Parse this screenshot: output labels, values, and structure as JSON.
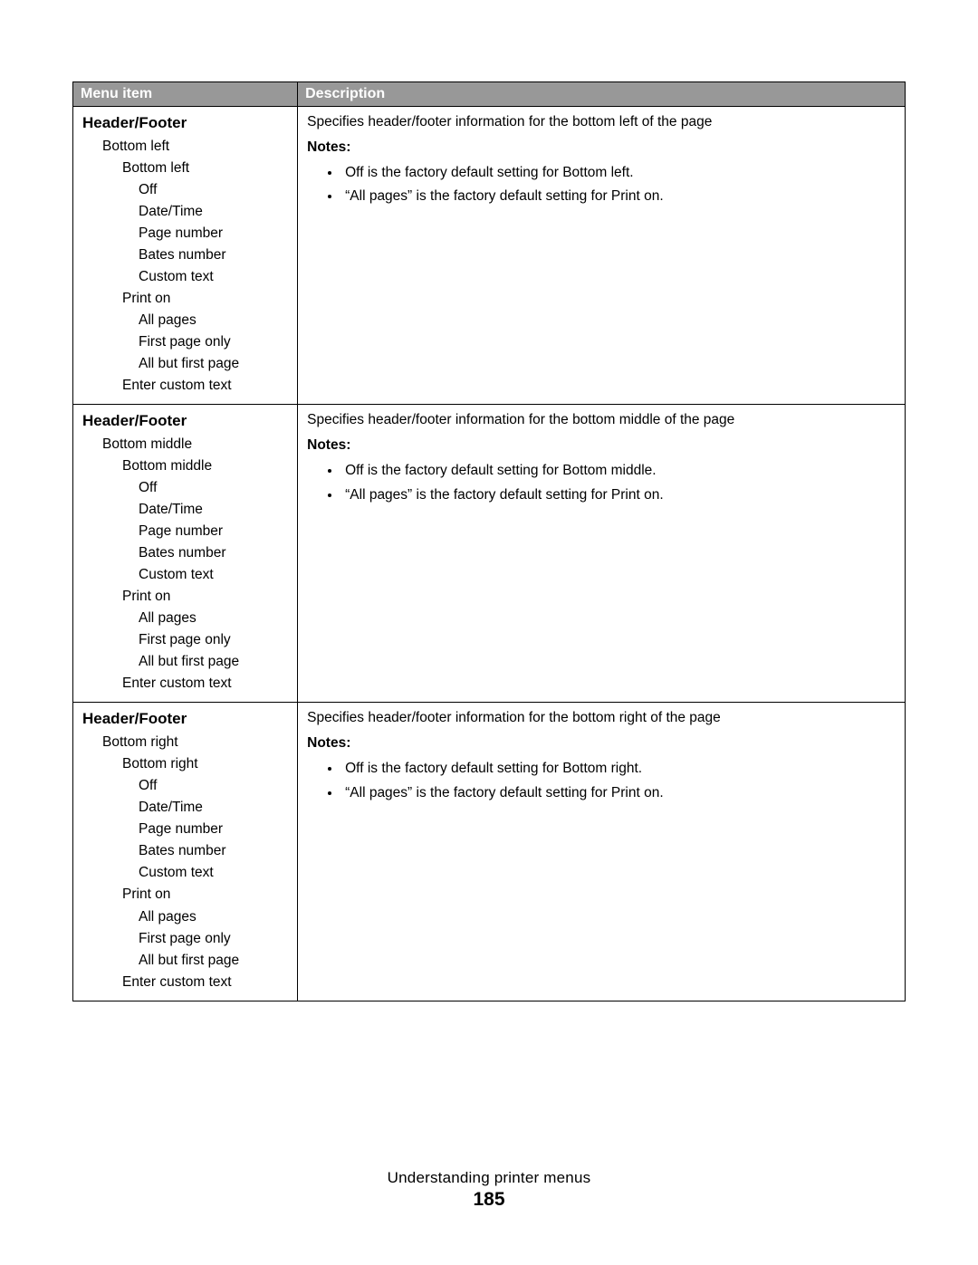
{
  "table": {
    "header": {
      "menu_item": "Menu item",
      "description": "Description"
    },
    "rows": [
      {
        "title": "Header/Footer",
        "group_label": "Bottom left",
        "option_label": "Bottom left",
        "options": [
          "Off",
          "Date/Time",
          "Page number",
          "Bates number",
          "Custom text"
        ],
        "print_on_label": "Print on",
        "print_on_options": [
          "All pages",
          "First page only",
          "All but first page"
        ],
        "enter_custom": "Enter custom text",
        "desc": "Specifies header/footer information for the bottom left of the page",
        "notes_label": "Notes:",
        "notes": [
          "Off is the factory default setting for Bottom left.",
          "“All pages” is the factory default setting for Print on."
        ]
      },
      {
        "title": "Header/Footer",
        "group_label": "Bottom middle",
        "option_label": "Bottom middle",
        "options": [
          "Off",
          "Date/Time",
          "Page number",
          "Bates number",
          "Custom text"
        ],
        "print_on_label": "Print on",
        "print_on_options": [
          "All pages",
          "First page only",
          "All but first page"
        ],
        "enter_custom": "Enter custom text",
        "desc": "Specifies header/footer information for the bottom middle of the page",
        "notes_label": "Notes:",
        "notes": [
          "Off is the factory default setting for Bottom middle.",
          "“All pages” is the factory default setting for Print on."
        ]
      },
      {
        "title": "Header/Footer",
        "group_label": "Bottom right",
        "option_label": "Bottom right",
        "options": [
          "Off",
          "Date/Time",
          "Page number",
          "Bates number",
          "Custom text"
        ],
        "print_on_label": "Print on",
        "print_on_options": [
          "All pages",
          "First page only",
          "All but first page"
        ],
        "enter_custom": "Enter custom text",
        "desc": "Specifies header/footer information for the bottom right of the page",
        "notes_label": "Notes:",
        "notes": [
          "Off is the factory default setting for Bottom right.",
          "“All pages” is the factory default setting for Print on."
        ]
      }
    ]
  },
  "footer": {
    "title": "Understanding printer menus",
    "page": "185"
  },
  "style": {
    "header_bg": "#989898",
    "header_fg": "#ffffff",
    "border_color": "#000000",
    "text_color": "#000000",
    "font_size_body": 15.5,
    "font_size_title": 17,
    "font_size_pageno": 21
  }
}
